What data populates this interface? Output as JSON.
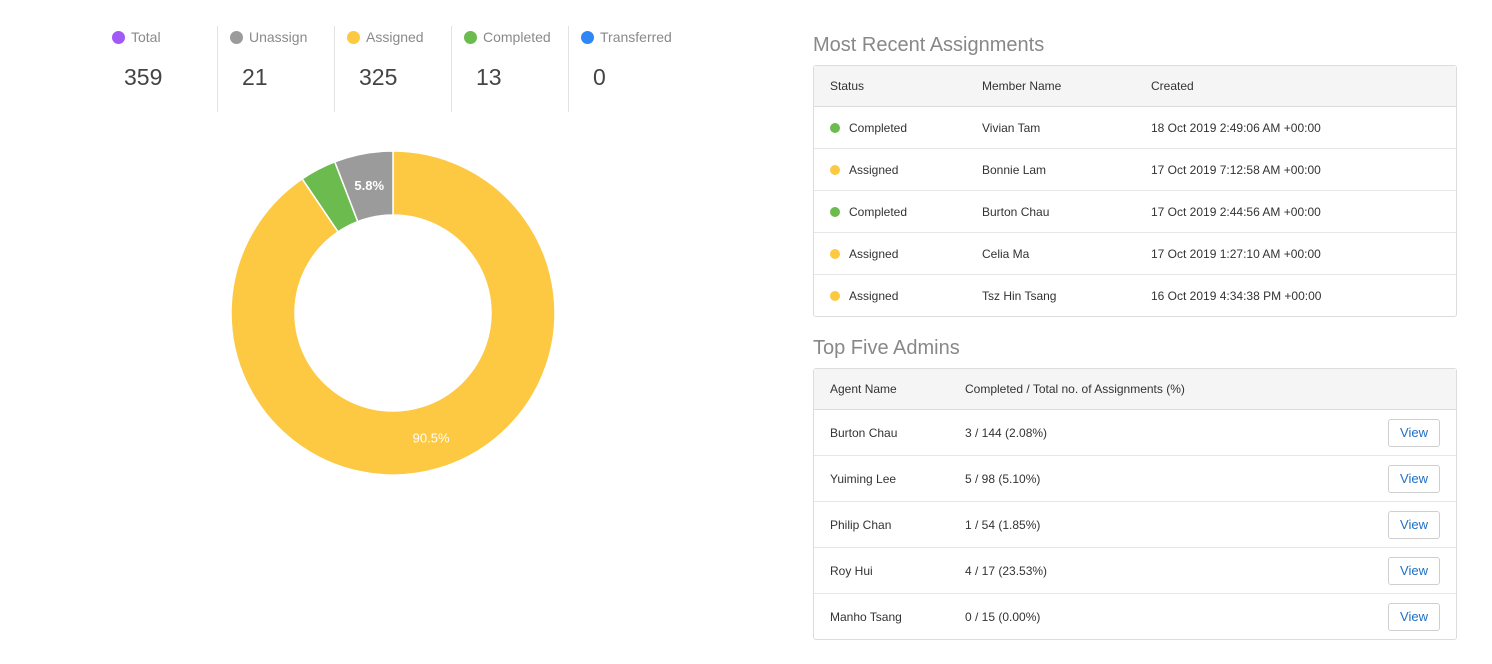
{
  "colors": {
    "total": "#a259f5",
    "unassign": "#9b9b9b",
    "assigned": "#fdc842",
    "completed": "#6cbb4f",
    "transferred": "#2f87f3"
  },
  "stats": [
    {
      "label": "Total",
      "value": "359",
      "color": "#a259f5"
    },
    {
      "label": "Unassign",
      "value": "21",
      "color": "#9b9b9b"
    },
    {
      "label": "Assigned",
      "value": "325",
      "color": "#fdc842"
    },
    {
      "label": "Completed",
      "value": "13",
      "color": "#6cbb4f"
    },
    {
      "label": "Transferred",
      "value": "0",
      "color": "#2f87f3"
    }
  ],
  "chart_data": {
    "type": "pie",
    "donut": true,
    "categories": [
      "Assigned",
      "Completed",
      "Unassign",
      "Transferred"
    ],
    "values": [
      325,
      13,
      21,
      0
    ],
    "colors": [
      "#fdc842",
      "#6cbb4f",
      "#9b9b9b",
      "#2f87f3"
    ],
    "data_labels": [
      "90.5%",
      "",
      "5.8%",
      ""
    ]
  },
  "recent": {
    "title": "Most Recent Assignments",
    "headers": {
      "status": "Status",
      "member": "Member Name",
      "created": "Created"
    },
    "rows": [
      {
        "status": "Completed",
        "status_color": "#6cbb4f",
        "member": "Vivian Tam",
        "created": "18 Oct 2019 2:49:06 AM +00:00"
      },
      {
        "status": "Assigned",
        "status_color": "#fdc842",
        "member": "Bonnie Lam",
        "created": "17 Oct 2019 7:12:58 AM +00:00"
      },
      {
        "status": "Completed",
        "status_color": "#6cbb4f",
        "member": "Burton Chau",
        "created": "17 Oct 2019 2:44:56 AM +00:00"
      },
      {
        "status": "Assigned",
        "status_color": "#fdc842",
        "member": "Celia Ma",
        "created": "17 Oct 2019 1:27:10 AM +00:00"
      },
      {
        "status": "Assigned",
        "status_color": "#fdc842",
        "member": "Tsz Hin Tsang",
        "created": "16 Oct 2019 4:34:38 PM +00:00"
      }
    ]
  },
  "admins": {
    "title": "Top Five Admins",
    "headers": {
      "agent": "Agent Name",
      "ratio": "Completed / Total no. of Assignments (%)"
    },
    "view_label": "View",
    "rows": [
      {
        "agent": "Burton Chau",
        "ratio": "3 / 144 (2.08%)"
      },
      {
        "agent": "Yuiming Lee",
        "ratio": "5 / 98 (5.10%)"
      },
      {
        "agent": "Philip Chan",
        "ratio": "1 / 54 (1.85%)"
      },
      {
        "agent": "Roy Hui",
        "ratio": "4 / 17 (23.53%)"
      },
      {
        "agent": "Manho Tsang",
        "ratio": "0 / 15 (0.00%)"
      }
    ]
  }
}
